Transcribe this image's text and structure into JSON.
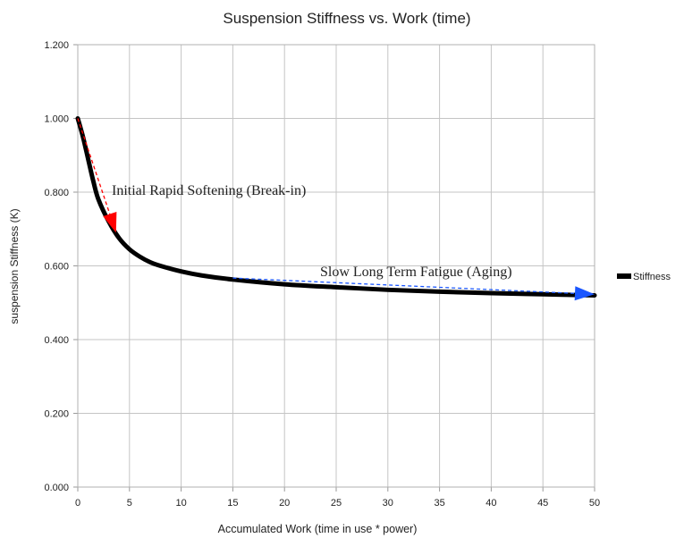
{
  "chart_data": {
    "type": "line",
    "title": "Suspension Stiffness vs. Work (time)",
    "xlabel": "Accumulated Work (time in use * power)",
    "ylabel": "suspension Stiffness (K)",
    "xlim": [
      0,
      50
    ],
    "ylim": [
      0,
      1.2
    ],
    "x_ticks": [
      0,
      5,
      10,
      15,
      20,
      25,
      30,
      35,
      40,
      45,
      50
    ],
    "y_ticks": [
      "0.000",
      "0.200",
      "0.400",
      "0.600",
      "0.800",
      "1.000",
      "1.200"
    ],
    "grid": true,
    "legend_position": "right",
    "series": [
      {
        "name": "Stiffness",
        "color": "#000000",
        "x": [
          0,
          0.5,
          1,
          1.5,
          2,
          3,
          4,
          5,
          6,
          7,
          8,
          10,
          12,
          15,
          20,
          25,
          30,
          35,
          40,
          45,
          50
        ],
        "y": [
          1.0,
          0.95,
          0.89,
          0.83,
          0.78,
          0.72,
          0.675,
          0.645,
          0.625,
          0.61,
          0.6,
          0.585,
          0.574,
          0.563,
          0.55,
          0.542,
          0.535,
          0.53,
          0.526,
          0.523,
          0.52
        ]
      }
    ],
    "annotations": [
      {
        "text": "Initial Rapid Softening (Break-in)",
        "color": "#ff0000",
        "arrow_from": [
          0,
          1.0
        ],
        "arrow_to": [
          3.7,
          0.69
        ]
      },
      {
        "text": "Slow Long Term Fatigue (Aging)",
        "color": "#1a56ff",
        "arrow_from": [
          15,
          0.567
        ],
        "arrow_to": [
          50,
          0.523
        ]
      }
    ]
  }
}
